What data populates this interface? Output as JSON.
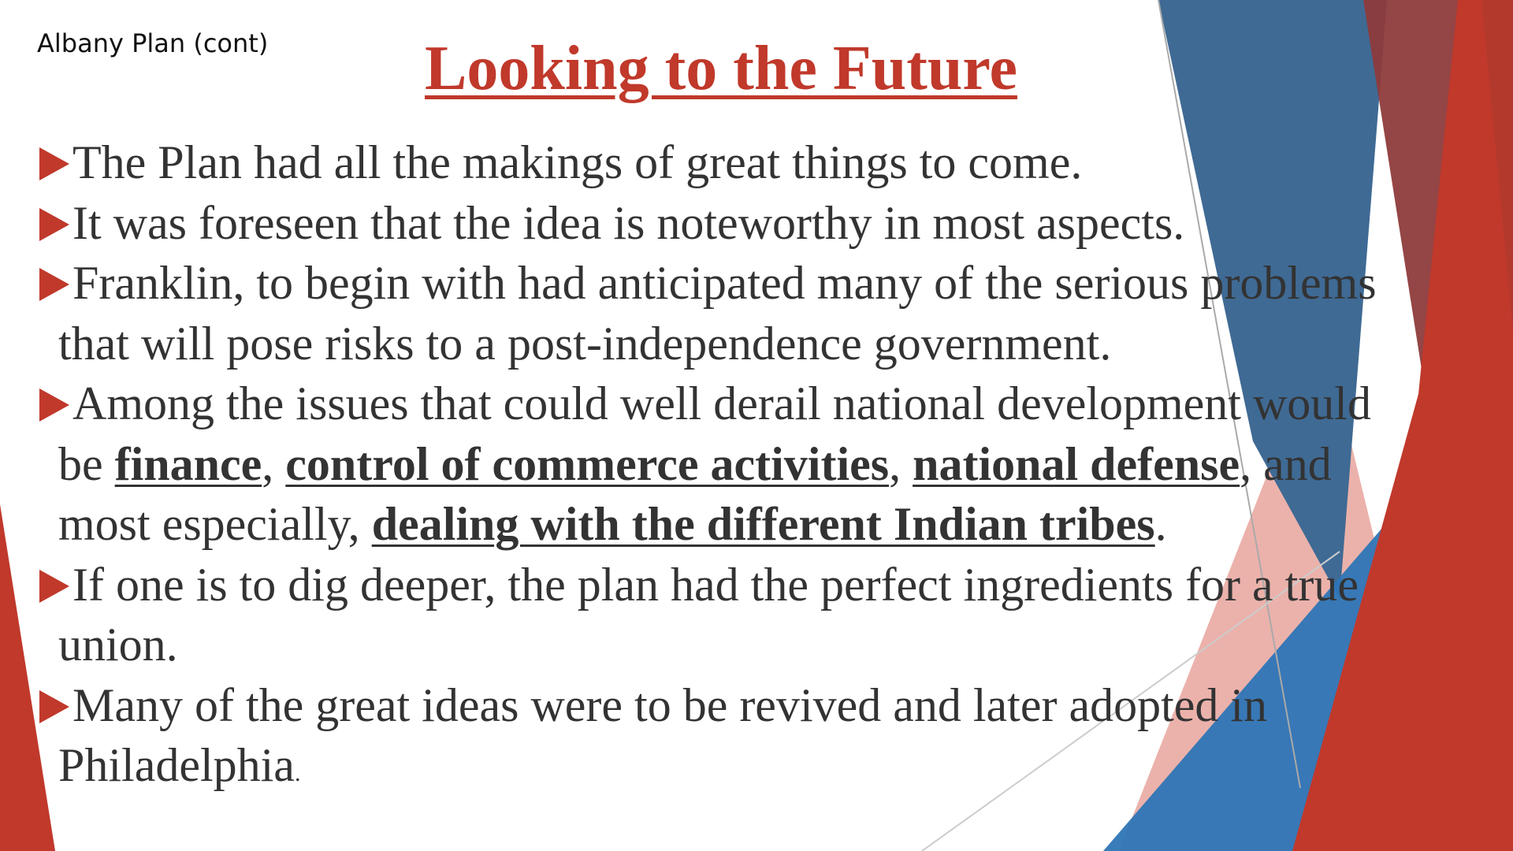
{
  "slide": {
    "corner_label": "Albany Plan (cont)",
    "title": "Looking to the Future",
    "bullets": [
      {
        "text": "The Plan had all the makings of great things to come."
      },
      {
        "text": "It was foreseen that the idea is noteworthy in most aspects."
      },
      {
        "line1": "Franklin, to begin with had anticipated many of the serious problems",
        "line2": "that will pose risks to a post-independence government."
      },
      {
        "line1": "Among the issues that could well derail national development would",
        "pre": "be ",
        "em1": "finance",
        "sep1": ", ",
        "em2": "control of commerce activities",
        "sep2": ", ",
        "em3": "national defense",
        "sep3": ", and",
        "pre3": "most especially, ",
        "em4": "dealing with the different Indian tribes",
        "end": "."
      },
      {
        "line1": "If one is to dig deeper, the plan had the perfect ingredients for a true",
        "line2": "union."
      },
      {
        "line1": "Many of the great ideas were to be revived and later adopted in",
        "line2": "Philadelphia",
        "end": "."
      }
    ]
  },
  "theme": {
    "title_color": "#C0392B",
    "bullet_color": "#C0392B",
    "text_color": "#333333",
    "red": "#C0392B",
    "light_red": "#E8A49C",
    "blue": "#2E75B6",
    "dark_blue": "#3F6A94",
    "maroon": "#8E3B3B"
  }
}
